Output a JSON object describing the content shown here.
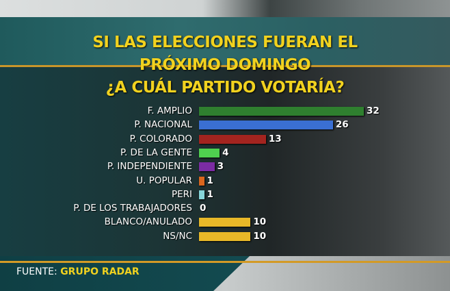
{
  "chart_data": {
    "type": "bar",
    "orientation": "horizontal",
    "title": [
      "SI LAS ELECCIONES FUERAN EL",
      "PRÓXIMO DOMINGO",
      "¿A CUÁL PARTIDO VOTARÍA?"
    ],
    "categories": [
      "F. AMPLIO",
      "P. NACIONAL",
      "P. COLORADO",
      "P. DE LA GENTE",
      "P. INDEPENDIENTE",
      "U. POPULAR",
      "PERI",
      "P. DE LOS TRABAJADORES",
      "BLANCO/ANULADO",
      "NS/NC"
    ],
    "values": [
      32,
      26,
      13,
      4,
      3,
      1,
      1,
      0,
      10,
      10
    ],
    "colors": [
      "#2f7f2f",
      "#3a6fd2",
      "#a3241f",
      "#4fd04f",
      "#7b2ca3",
      "#d9661e",
      "#86d6da",
      "#e5b92a",
      "#e8b828",
      "#e8b828"
    ],
    "xlim": [
      0,
      32
    ],
    "xlabel": "",
    "ylabel": ""
  },
  "source": {
    "label": "FUENTE:",
    "value": "GRUPO RADAR"
  }
}
